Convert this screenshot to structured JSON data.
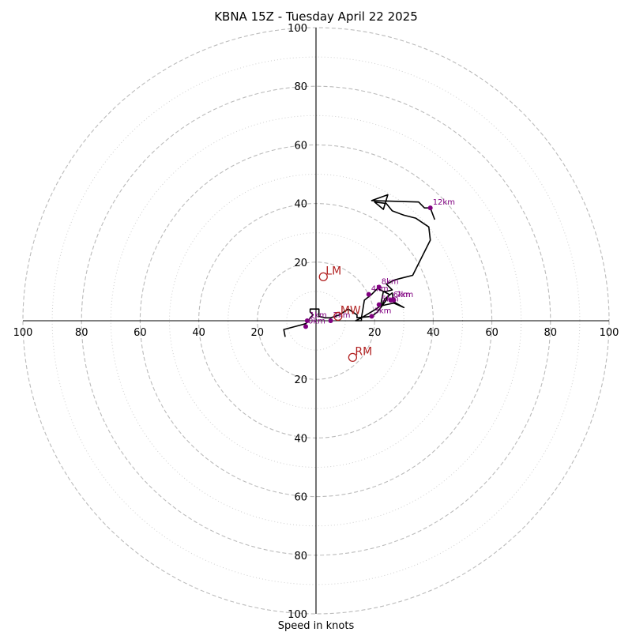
{
  "chart_data": {
    "type": "hodograph",
    "title": "KBNA 15Z - Tuesday April 22 2025",
    "xlabel": "Speed in knots",
    "rmax": 100,
    "major_rings": [
      20,
      40,
      60,
      80,
      100
    ],
    "minor_rings": [
      10,
      30,
      50,
      70,
      90
    ],
    "tick_labels": [
      "20",
      "40",
      "60",
      "80",
      "100"
    ],
    "trace": [
      [
        -10.5,
        -5.5
      ],
      [
        -11,
        -3
      ],
      [
        -3.5,
        -1
      ],
      [
        -2.5,
        0
      ],
      [
        -2,
        1
      ],
      [
        -1,
        2
      ],
      [
        -2,
        3
      ],
      [
        -2,
        4
      ],
      [
        1,
        4
      ],
      [
        1,
        1.5
      ],
      [
        3,
        1
      ],
      [
        5,
        1
      ],
      [
        8,
        2
      ],
      [
        11,
        4
      ],
      [
        14,
        2
      ],
      [
        14,
        1
      ],
      [
        19,
        1.5
      ],
      [
        21,
        3
      ],
      [
        24,
        7
      ],
      [
        25,
        9
      ],
      [
        23,
        10
      ],
      [
        21,
        11
      ],
      [
        19,
        9
      ],
      [
        16.5,
        7
      ],
      [
        16,
        4
      ],
      [
        15.5,
        1
      ],
      [
        13.5,
        0
      ],
      [
        15.5,
        0
      ],
      [
        15.5,
        1
      ],
      [
        20.5,
        4
      ],
      [
        22.5,
        5.5
      ],
      [
        23.5,
        7.5
      ],
      [
        26,
        9.5
      ],
      [
        26.5,
        6.5
      ],
      [
        30,
        4.5
      ],
      [
        26.5,
        6
      ],
      [
        24,
        5.5
      ],
      [
        22,
        5
      ],
      [
        23,
        10
      ],
      [
        24,
        10
      ],
      [
        26,
        10.5
      ],
      [
        24,
        12.5
      ],
      [
        27,
        14
      ],
      [
        33,
        15.5
      ],
      [
        39,
        27.5
      ],
      [
        38.5,
        32
      ],
      [
        34,
        35
      ],
      [
        30,
        36
      ],
      [
        26,
        37.5
      ],
      [
        24,
        40
      ],
      [
        20,
        40.5
      ],
      [
        23,
        38
      ],
      [
        24.5,
        43
      ],
      [
        19,
        41
      ],
      [
        35,
        40.5
      ],
      [
        37,
        38.5
      ],
      [
        39,
        38.5
      ],
      [
        40.5,
        34.5
      ]
    ],
    "height_markers": [
      {
        "label": "0km",
        "u": -3.5,
        "v": -2
      },
      {
        "label": "1km",
        "u": -3,
        "v": 0
      },
      {
        "label": "2km",
        "u": 5,
        "v": 0
      },
      {
        "label": "3km",
        "u": 19,
        "v": 1.5
      },
      {
        "label": "4km",
        "u": 18,
        "v": 9
      },
      {
        "label": "5km",
        "u": 21.5,
        "v": 5.5
      },
      {
        "label": "6km",
        "u": 25.5,
        "v": 7
      },
      {
        "label": "7km",
        "u": 26.5,
        "v": 7
      },
      {
        "label": "8km",
        "u": 21.5,
        "v": 11.5
      },
      {
        "label": "12km",
        "u": 39,
        "v": 38.5
      }
    ],
    "storm_motion": [
      {
        "label": "LM",
        "u": 2.5,
        "v": 15
      },
      {
        "label": "MW",
        "u": 7.5,
        "v": 1.5
      },
      {
        "label": "RM",
        "u": 12.5,
        "v": -12.5
      }
    ],
    "colors": {
      "trace": "#000000",
      "height_markers": "#800080",
      "storm_motion": "#b22222",
      "grid": "#bbbbbb"
    }
  }
}
